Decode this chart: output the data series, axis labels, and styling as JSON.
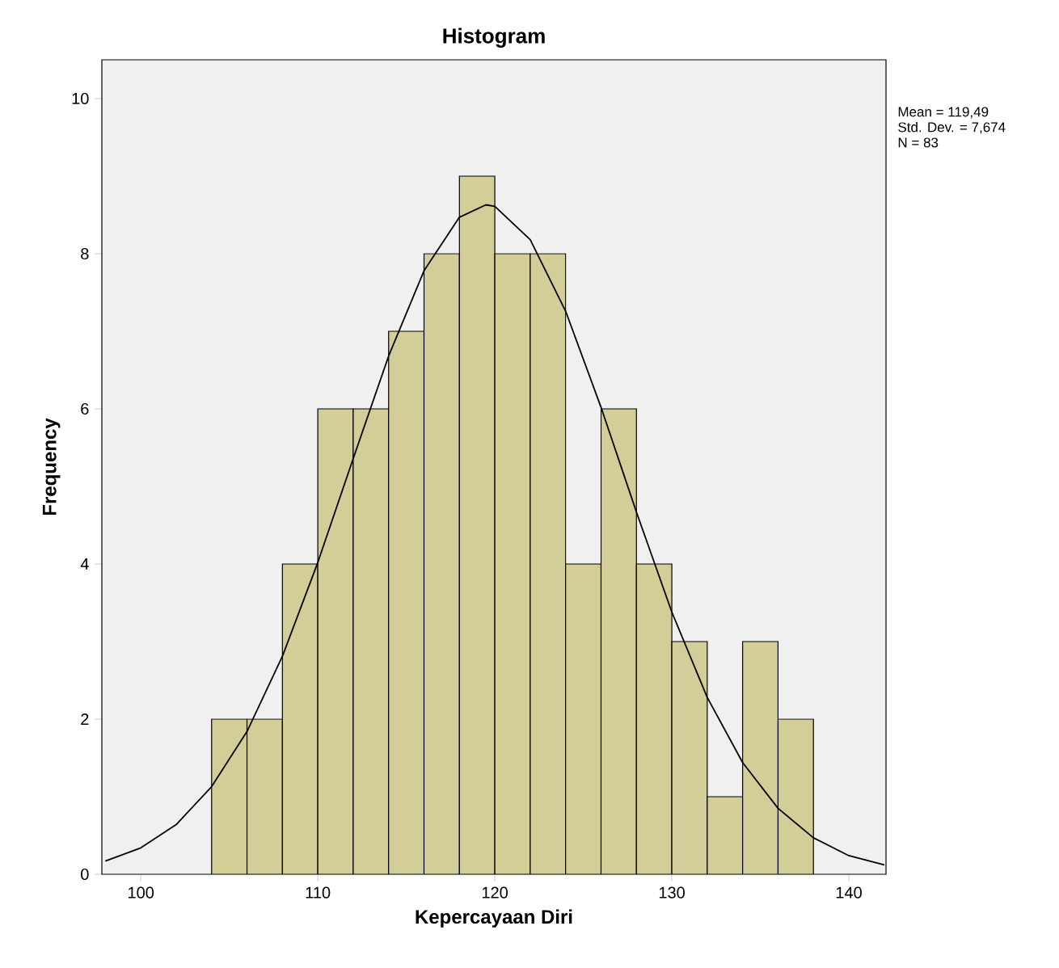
{
  "chart_data": {
    "type": "histogram",
    "title": "Histogram",
    "xlabel": "Kepercayaan Diri",
    "ylabel": "Frequency",
    "bins": [
      104,
      106,
      108,
      110,
      112,
      114,
      116,
      118,
      120,
      122,
      124,
      126,
      128,
      130,
      132,
      134,
      136,
      138
    ],
    "values": [
      2,
      2,
      4,
      6,
      6,
      7,
      8,
      9,
      8,
      8,
      4,
      6,
      4,
      3,
      1,
      3,
      2
    ],
    "color": "#d3ce97",
    "series": [
      {
        "type": "line",
        "color": "#000000",
        "x": [
          98,
          100,
          102,
          104,
          106,
          108,
          110,
          112,
          114,
          116,
          118,
          119.5,
          120,
          122,
          124,
          126,
          128,
          130,
          132,
          134,
          136,
          138,
          140,
          142
        ],
        "values": [
          0.17,
          0.34,
          0.64,
          1.13,
          1.84,
          2.81,
          4.02,
          5.36,
          6.68,
          7.78,
          8.47,
          8.63,
          8.61,
          8.18,
          7.26,
          6.02,
          4.67,
          3.38,
          2.28,
          1.44,
          0.85,
          0.47,
          0.24,
          0.12
        ]
      }
    ],
    "xlim": [
      97.8,
      142.1
    ],
    "ylim": [
      0,
      10.5
    ],
    "xticks": [
      100,
      110,
      120,
      130,
      140
    ],
    "yticks": [
      0,
      2,
      4,
      6,
      8,
      10
    ],
    "grid": false,
    "annotations": [
      "Mean = 119,49",
      "Std. Dev. = 7,674",
      "N = 83"
    ]
  }
}
